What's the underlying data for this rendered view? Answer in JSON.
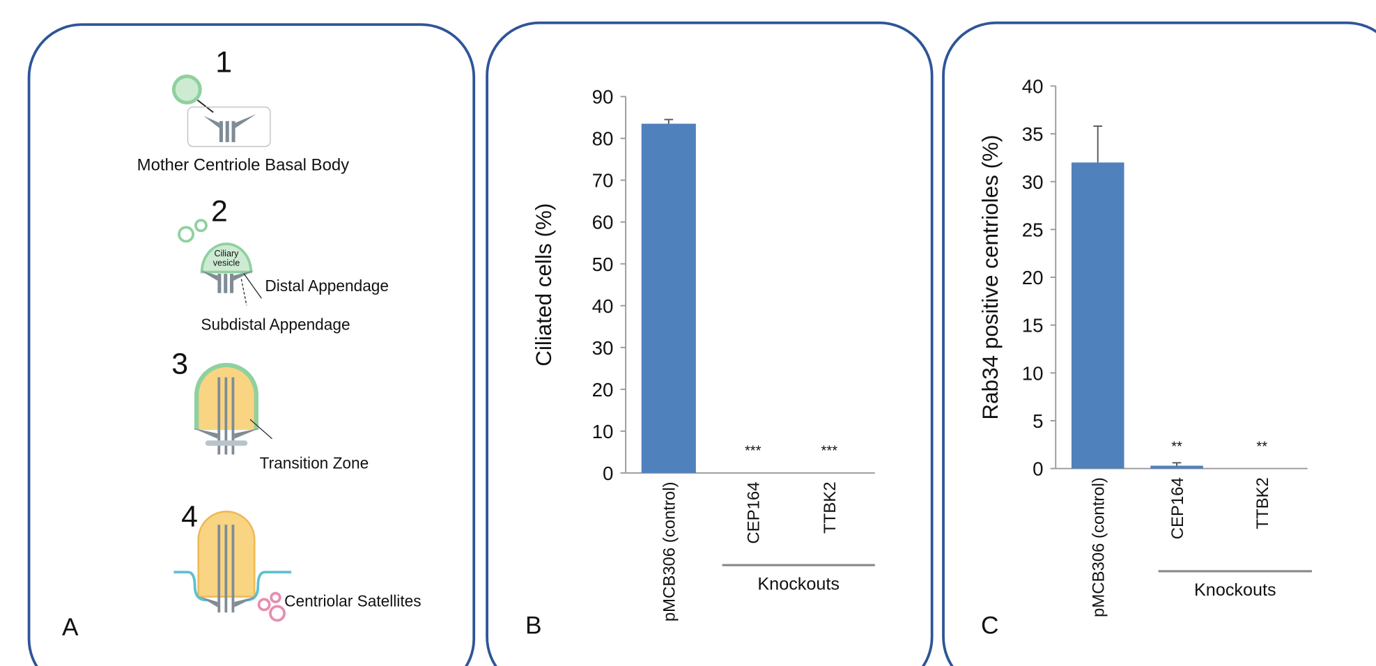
{
  "panel_a": {
    "label": "A",
    "steps": [
      {
        "number": "1",
        "texts": [
          "Mother Centriole Basal Body"
        ]
      },
      {
        "number": "2",
        "texts": [
          "Ciliary",
          "vesicle",
          "Distal Appendage",
          "Subdistal Appendage"
        ]
      },
      {
        "number": "3",
        "texts": [
          "Transition Zone"
        ]
      },
      {
        "number": "4",
        "texts": [
          "Centriolar Satellites"
        ]
      }
    ]
  },
  "chart_data": [
    {
      "type": "bar",
      "panel": "B",
      "y_label": "Ciliated cells (%)",
      "categories": [
        "pMCB306 (control)",
        "CEP164",
        "TTBK2"
      ],
      "values": [
        83.5,
        0,
        0
      ],
      "errors": [
        1,
        null,
        null
      ],
      "significance": [
        null,
        "***",
        "***"
      ],
      "group_label": "Knockouts",
      "color": "#4f81bd",
      "ylim": [
        0,
        90
      ],
      "yticks": [
        0,
        10,
        20,
        30,
        40,
        50,
        60,
        70,
        80,
        90
      ]
    },
    {
      "type": "bar",
      "panel": "C",
      "y_label": "Rab34 positive centrioles (%)",
      "categories": [
        "pMCB306 (control)",
        "CEP164",
        "TTBK2"
      ],
      "values": [
        32,
        0.3,
        0
      ],
      "errors": [
        3.8,
        0.3,
        null
      ],
      "significance": [
        null,
        "**",
        "**"
      ],
      "group_label": "Knockouts",
      "color": "#4f81bd",
      "ylim": [
        0,
        40
      ],
      "yticks": [
        0,
        5,
        10,
        15,
        20,
        25,
        30,
        35,
        40
      ]
    }
  ]
}
